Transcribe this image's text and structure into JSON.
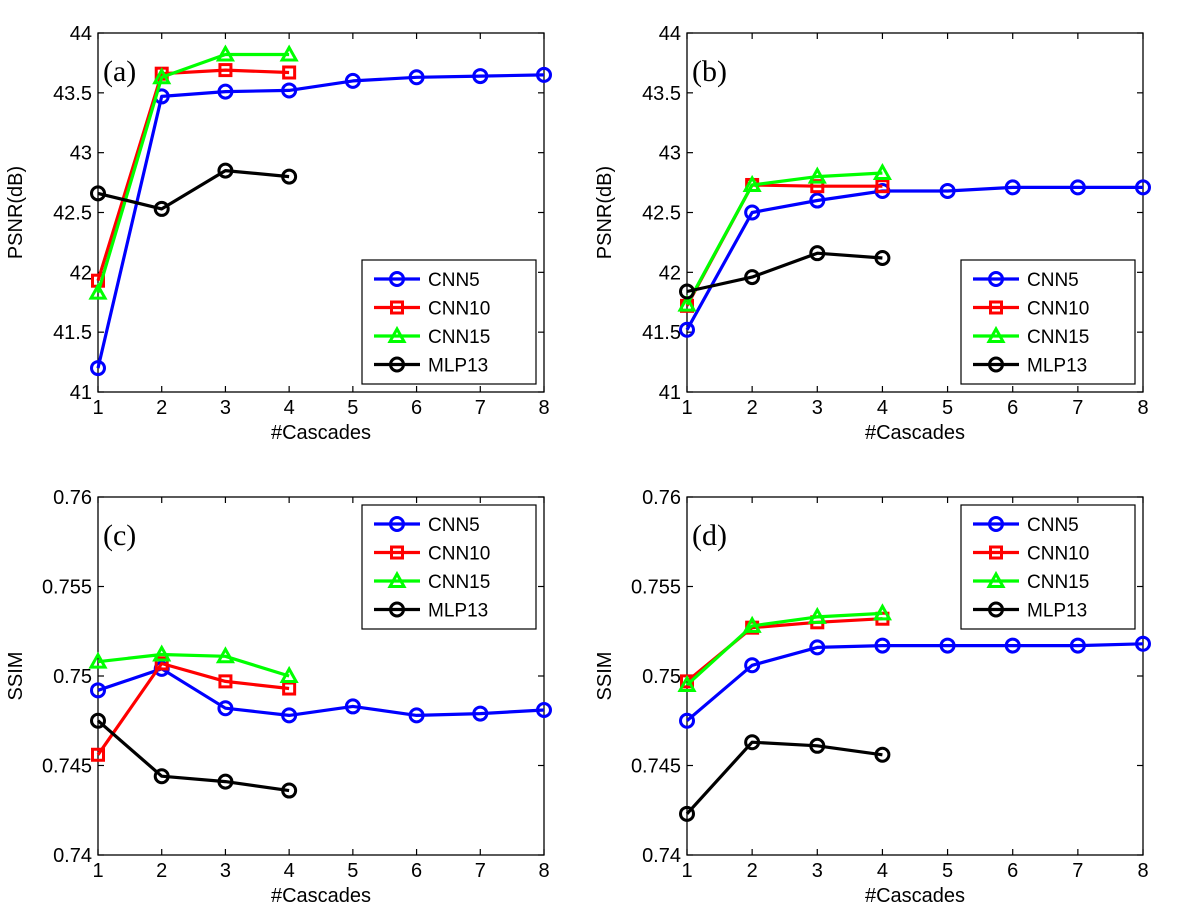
{
  "colors": {
    "CNN5": "#0000ff",
    "CNN10": "#ff0000",
    "CNN15": "#00ff00",
    "MLP13": "#000000",
    "axes": "#000000",
    "background": "#ffffff"
  },
  "chart_data": [
    {
      "id": "a",
      "type": "line",
      "panel_label": "(a)",
      "xlabel": "#Cascades",
      "ylabel": "PSNR(dB)",
      "xlim": [
        1,
        8
      ],
      "ylim": [
        41,
        44
      ],
      "xticks": [
        1,
        2,
        3,
        4,
        5,
        6,
        7,
        8
      ],
      "yticks": [
        41,
        41.5,
        42,
        42.5,
        43,
        43.5,
        44
      ],
      "ytick_labels": [
        "41",
        "41.5",
        "42",
        "42.5",
        "43",
        "43.5",
        "44"
      ],
      "grid": false,
      "legend_position": "bottom-right",
      "series": [
        {
          "name": "CNN5",
          "marker": "circle",
          "x": [
            1,
            2,
            3,
            4,
            5,
            6,
            7,
            8
          ],
          "values": [
            41.2,
            43.47,
            43.51,
            43.52,
            43.6,
            43.63,
            43.64,
            43.65
          ]
        },
        {
          "name": "CNN10",
          "marker": "square",
          "x": [
            1,
            2,
            3,
            4
          ],
          "values": [
            41.93,
            43.66,
            43.69,
            43.67
          ]
        },
        {
          "name": "CNN15",
          "marker": "triangle",
          "x": [
            1,
            2,
            3,
            4
          ],
          "values": [
            41.83,
            43.63,
            43.82,
            43.82
          ]
        },
        {
          "name": "MLP13",
          "marker": "circle",
          "x": [
            1,
            2,
            3,
            4
          ],
          "values": [
            42.66,
            42.53,
            42.85,
            42.8
          ]
        }
      ]
    },
    {
      "id": "b",
      "type": "line",
      "panel_label": "(b)",
      "xlabel": "#Cascades",
      "ylabel": "PSNR(dB)",
      "xlim": [
        1,
        8
      ],
      "ylim": [
        41,
        44
      ],
      "xticks": [
        1,
        2,
        3,
        4,
        5,
        6,
        7,
        8
      ],
      "yticks": [
        41,
        41.5,
        42,
        42.5,
        43,
        43.5,
        44
      ],
      "ytick_labels": [
        "41",
        "41.5",
        "42",
        "42.5",
        "43",
        "43.5",
        "44"
      ],
      "grid": false,
      "legend_position": "bottom-right",
      "series": [
        {
          "name": "CNN5",
          "marker": "circle",
          "x": [
            1,
            2,
            3,
            4,
            5,
            6,
            7,
            8
          ],
          "values": [
            41.52,
            42.5,
            42.6,
            42.68,
            42.68,
            42.71,
            42.71,
            42.71
          ]
        },
        {
          "name": "CNN10",
          "marker": "square",
          "x": [
            1,
            2,
            3,
            4
          ],
          "values": [
            41.72,
            42.73,
            42.72,
            42.72
          ]
        },
        {
          "name": "CNN15",
          "marker": "triangle",
          "x": [
            1,
            2,
            3,
            4
          ],
          "values": [
            41.73,
            42.73,
            42.8,
            42.83
          ]
        },
        {
          "name": "MLP13",
          "marker": "circle",
          "x": [
            1,
            2,
            3,
            4
          ],
          "values": [
            41.84,
            41.96,
            42.16,
            42.12
          ]
        }
      ]
    },
    {
      "id": "c",
      "type": "line",
      "panel_label": "(c)",
      "xlabel": "#Cascades",
      "ylabel": "SSIM",
      "xlim": [
        1,
        8
      ],
      "ylim": [
        0.74,
        0.76
      ],
      "xticks": [
        1,
        2,
        3,
        4,
        5,
        6,
        7,
        8
      ],
      "yticks": [
        0.74,
        0.745,
        0.75,
        0.755,
        0.76
      ],
      "ytick_labels": [
        "0.74",
        "0.745",
        "0.75",
        "0.755",
        "0.76"
      ],
      "grid": false,
      "legend_position": "top-right",
      "series": [
        {
          "name": "CNN5",
          "marker": "circle",
          "x": [
            1,
            2,
            3,
            4,
            5,
            6,
            7,
            8
          ],
          "values": [
            0.7492,
            0.7504,
            0.7482,
            0.7478,
            0.7483,
            0.7478,
            0.7479,
            0.7481
          ]
        },
        {
          "name": "CNN10",
          "marker": "square",
          "x": [
            1,
            2,
            3,
            4
          ],
          "values": [
            0.7456,
            0.7507,
            0.7497,
            0.7493
          ]
        },
        {
          "name": "CNN15",
          "marker": "triangle",
          "x": [
            1,
            2,
            3,
            4
          ],
          "values": [
            0.7508,
            0.7512,
            0.7511,
            0.75
          ]
        },
        {
          "name": "MLP13",
          "marker": "circle",
          "x": [
            1,
            2,
            3,
            4
          ],
          "values": [
            0.7475,
            0.7444,
            0.7441,
            0.7436
          ]
        }
      ]
    },
    {
      "id": "d",
      "type": "line",
      "panel_label": "(d)",
      "xlabel": "#Cascades",
      "ylabel": "SSIM",
      "xlim": [
        1,
        8
      ],
      "ylim": [
        0.74,
        0.76
      ],
      "xticks": [
        1,
        2,
        3,
        4,
        5,
        6,
        7,
        8
      ],
      "yticks": [
        0.74,
        0.745,
        0.75,
        0.755,
        0.76
      ],
      "ytick_labels": [
        "0.74",
        "0.745",
        "0.75",
        "0.755",
        "0.76"
      ],
      "grid": false,
      "legend_position": "top-right",
      "series": [
        {
          "name": "CNN5",
          "marker": "circle",
          "x": [
            1,
            2,
            3,
            4,
            5,
            6,
            7,
            8
          ],
          "values": [
            0.7475,
            0.7506,
            0.7516,
            0.7517,
            0.7517,
            0.7517,
            0.7517,
            0.7518
          ]
        },
        {
          "name": "CNN10",
          "marker": "square",
          "x": [
            1,
            2,
            3,
            4
          ],
          "values": [
            0.7497,
            0.7527,
            0.753,
            0.7532
          ]
        },
        {
          "name": "CNN15",
          "marker": "triangle",
          "x": [
            1,
            2,
            3,
            4
          ],
          "values": [
            0.7495,
            0.7528,
            0.7533,
            0.7535
          ]
        },
        {
          "name": "MLP13",
          "marker": "circle",
          "x": [
            1,
            2,
            3,
            4
          ],
          "values": [
            0.7423,
            0.7463,
            0.7461,
            0.7456
          ]
        }
      ]
    }
  ]
}
